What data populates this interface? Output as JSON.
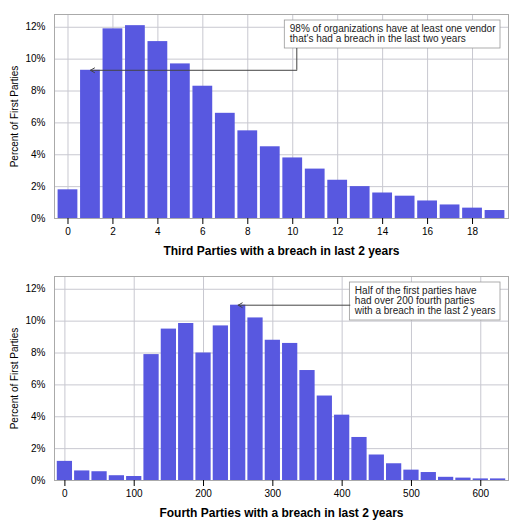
{
  "chart_data": [
    {
      "type": "bar",
      "x_label": "Third Parties with a breach in last 2 years",
      "y_label": "Percent of First Parties",
      "x": [
        0,
        1,
        2,
        3,
        4,
        5,
        6,
        7,
        8,
        9,
        10,
        11,
        12,
        13,
        14,
        15,
        16,
        17,
        18,
        19
      ],
      "values": [
        1.8,
        9.3,
        11.9,
        12.1,
        11.1,
        9.7,
        8.3,
        6.6,
        5.5,
        4.5,
        3.8,
        3.1,
        2.4,
        2.0,
        1.6,
        1.4,
        1.1,
        0.85,
        0.65,
        0.5
      ],
      "color": "#5858e0",
      "xlim": [
        -0.6,
        19.6
      ],
      "xticks": [
        0,
        2,
        4,
        6,
        8,
        10,
        12,
        14,
        16,
        18
      ],
      "ylim": [
        0,
        12.8
      ],
      "yticks": [
        {
          "value": 0,
          "label": "0%"
        },
        {
          "value": 2,
          "label": "2%"
        },
        {
          "value": 4,
          "label": "4%"
        },
        {
          "value": 6,
          "label": "6%"
        },
        {
          "value": 8,
          "label": "8%"
        },
        {
          "value": 10,
          "label": "10%"
        },
        {
          "value": 12,
          "label": "12%"
        }
      ],
      "grid": true,
      "annotations": [
        {
          "text": "98% of organizations have at least one vendor\nthat's had a breach in the last two years",
          "x": 1,
          "y": 9.3
        }
      ]
    },
    {
      "type": "bar",
      "x_label": "Fourth Parties with a breach in last 2 years",
      "y_label": "Percent of First Parties",
      "x": [
        0,
        25,
        50,
        75,
        100,
        125,
        150,
        175,
        200,
        225,
        250,
        275,
        300,
        325,
        350,
        375,
        400,
        425,
        450,
        475,
        500,
        525,
        550,
        575,
        600,
        625
      ],
      "values": [
        1.2,
        0.6,
        0.55,
        0.3,
        0.25,
        7.9,
        9.5,
        9.85,
        8.0,
        9.7,
        11.0,
        10.2,
        8.8,
        8.6,
        6.9,
        5.3,
        4.1,
        2.7,
        1.6,
        1.05,
        0.65,
        0.5,
        0.2,
        0.15,
        0.1,
        0.1
      ],
      "color": "#5858e0",
      "xlim": [
        -15,
        640
      ],
      "xticks": [
        0,
        100,
        200,
        300,
        400,
        500,
        600
      ],
      "ylim": [
        0,
        12.8
      ],
      "yticks": [
        {
          "value": 0,
          "label": "0%"
        },
        {
          "value": 2,
          "label": "2%"
        },
        {
          "value": 4,
          "label": "4%"
        },
        {
          "value": 6,
          "label": "6%"
        },
        {
          "value": 8,
          "label": "8%"
        },
        {
          "value": 10,
          "label": "10%"
        },
        {
          "value": 12,
          "label": "12%"
        }
      ],
      "grid": true,
      "annotations": [
        {
          "text": "Half of the first parties have\nhad over 200 fourth parties\nwith a breach in the last 2 years",
          "x": 250,
          "y": 11.0
        }
      ]
    }
  ]
}
